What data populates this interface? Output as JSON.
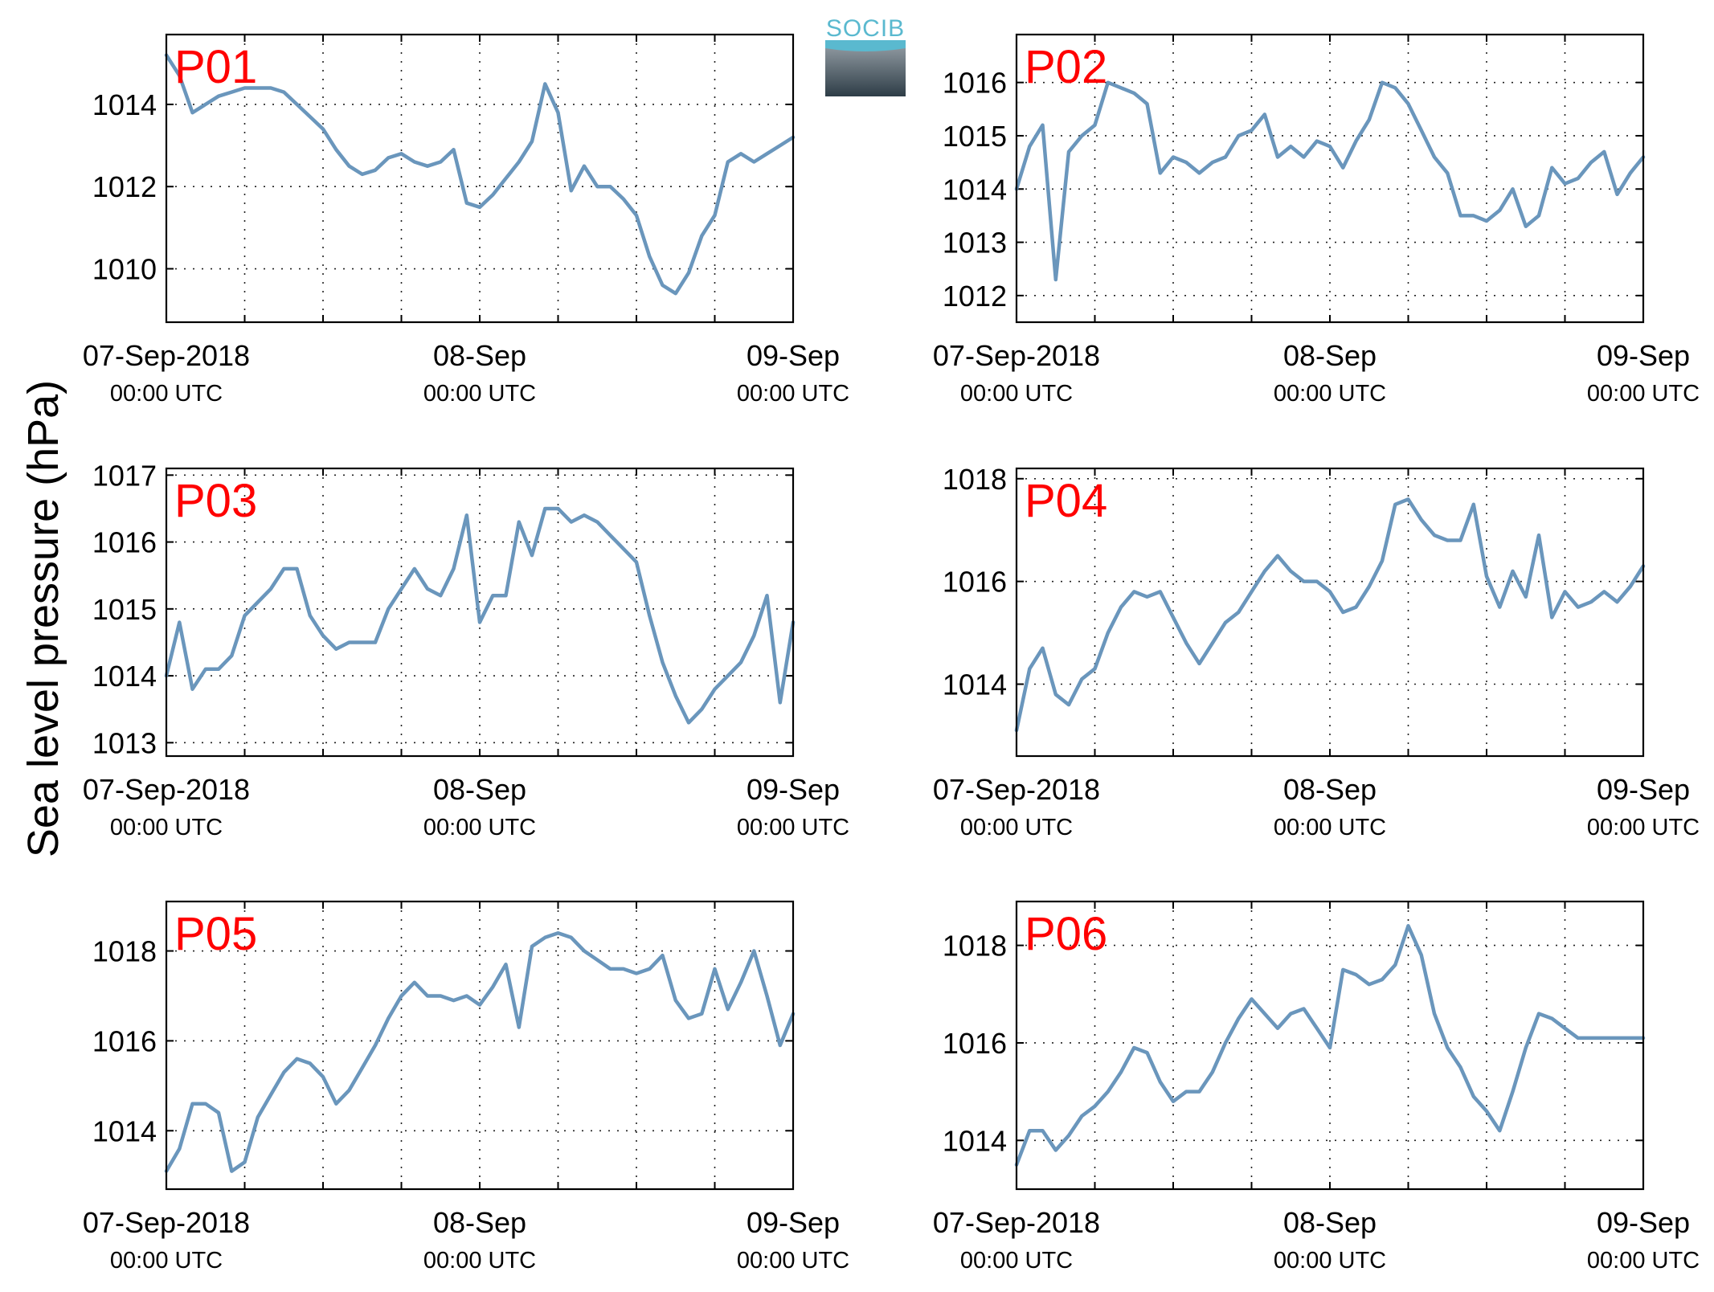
{
  "figure": {
    "ylabel": "Sea level pressure (hPa)",
    "logo_text": "SOCIB"
  },
  "colors": {
    "series": "#6a96bc",
    "label": "#ff0000",
    "logo_top": "#5ab9cf",
    "logo_bottom": "#2f3e48"
  },
  "chart_data": [
    {
      "type": "line",
      "title": "P01",
      "x_ticks": [
        {
          "main": "07-Sep-2018",
          "sub": "00:00 UTC"
        },
        {
          "main": "08-Sep",
          "sub": "00:00 UTC"
        },
        {
          "main": "09-Sep",
          "sub": "00:00 UTC"
        }
      ],
      "x_range_hours": [
        0,
        48
      ],
      "ylim": [
        1008.7,
        1015.7
      ],
      "yticks": [
        1010,
        1012,
        1014
      ],
      "grid": true,
      "x": [
        0,
        1,
        2,
        3,
        4,
        5,
        6,
        7,
        8,
        9,
        10,
        11,
        12,
        13,
        14,
        15,
        16,
        17,
        18,
        19,
        20,
        21,
        22,
        23,
        24,
        25,
        26,
        27,
        28,
        29,
        30,
        31,
        32,
        33,
        34,
        35,
        36,
        37,
        38,
        39,
        40,
        41,
        42,
        43,
        44,
        45,
        46,
        47,
        48
      ],
      "values": [
        1015.2,
        1014.7,
        1013.8,
        1014,
        1014.2,
        1014.3,
        1014.4,
        1014.4,
        1014.4,
        1014.3,
        1014,
        1013.7,
        1013.4,
        1012.9,
        1012.5,
        1012.3,
        1012.4,
        1012.7,
        1012.8,
        1012.6,
        1012.5,
        1012.6,
        1012.9,
        1011.6,
        1011.5,
        1011.8,
        1012.2,
        1012.6,
        1013.1,
        1014.5,
        1013.8,
        1011.9,
        1012.5,
        1012,
        1012,
        1011.7,
        1011.3,
        1010.3,
        1009.6,
        1009.4,
        1009.9,
        1010.8,
        1011.3,
        1012.6,
        1012.8,
        1012.6,
        1012.8,
        1013,
        1013.2
      ]
    },
    {
      "type": "line",
      "title": "P02",
      "x_ticks": [
        {
          "main": "07-Sep-2018",
          "sub": "00:00 UTC"
        },
        {
          "main": "08-Sep",
          "sub": "00:00 UTC"
        },
        {
          "main": "09-Sep",
          "sub": "00:00 UTC"
        }
      ],
      "x_range_hours": [
        0,
        48
      ],
      "ylim": [
        1011.5,
        1016.9
      ],
      "yticks": [
        1012,
        1013,
        1014,
        1015,
        1016
      ],
      "grid": true,
      "x": [
        0,
        1,
        2,
        3,
        4,
        5,
        6,
        7,
        8,
        9,
        10,
        11,
        12,
        13,
        14,
        15,
        16,
        17,
        18,
        19,
        20,
        21,
        22,
        23,
        24,
        25,
        26,
        27,
        28,
        29,
        30,
        31,
        32,
        33,
        34,
        35,
        36,
        37,
        38,
        39,
        40,
        41,
        42,
        43,
        44,
        45,
        46,
        47,
        48
      ],
      "values": [
        1014,
        1014.8,
        1015.2,
        1012.3,
        1014.7,
        1015,
        1015.2,
        1016,
        1015.9,
        1015.8,
        1015.6,
        1014.3,
        1014.6,
        1014.5,
        1014.3,
        1014.5,
        1014.6,
        1015,
        1015.1,
        1015.4,
        1014.6,
        1014.8,
        1014.6,
        1014.9,
        1014.8,
        1014.4,
        1014.9,
        1015.3,
        1016,
        1015.9,
        1015.6,
        1015.1,
        1014.6,
        1014.3,
        1013.5,
        1013.5,
        1013.4,
        1013.6,
        1014,
        1013.3,
        1013.5,
        1014.4,
        1014.1,
        1014.2,
        1014.5,
        1014.7,
        1013.9,
        1014.3,
        1014.6
      ]
    },
    {
      "type": "line",
      "title": "P03",
      "x_ticks": [
        {
          "main": "07-Sep-2018",
          "sub": "00:00 UTC"
        },
        {
          "main": "08-Sep",
          "sub": "00:00 UTC"
        },
        {
          "main": "09-Sep",
          "sub": "00:00 UTC"
        }
      ],
      "x_range_hours": [
        0,
        48
      ],
      "ylim": [
        1012.8,
        1017.1
      ],
      "yticks": [
        1013,
        1014,
        1015,
        1016,
        1017
      ],
      "grid": true,
      "x": [
        0,
        1,
        2,
        3,
        4,
        5,
        6,
        7,
        8,
        9,
        10,
        11,
        12,
        13,
        14,
        15,
        16,
        17,
        18,
        19,
        20,
        21,
        22,
        23,
        24,
        25,
        26,
        27,
        28,
        29,
        30,
        31,
        32,
        33,
        34,
        35,
        36,
        37,
        38,
        39,
        40,
        41,
        42,
        43,
        44,
        45,
        46,
        47,
        48
      ],
      "values": [
        1014,
        1014.8,
        1013.8,
        1014.1,
        1014.1,
        1014.3,
        1014.9,
        1015.1,
        1015.3,
        1015.6,
        1015.6,
        1014.9,
        1014.6,
        1014.4,
        1014.5,
        1014.5,
        1014.5,
        1015,
        1015.3,
        1015.6,
        1015.3,
        1015.2,
        1015.6,
        1016.4,
        1014.8,
        1015.2,
        1015.2,
        1016.3,
        1015.8,
        1016.5,
        1016.5,
        1016.3,
        1016.4,
        1016.3,
        1016.1,
        1015.9,
        1015.7,
        1014.9,
        1014.2,
        1013.7,
        1013.3,
        1013.5,
        1013.8,
        1014,
        1014.2,
        1014.6,
        1015.2,
        1013.6,
        1014.8
      ]
    },
    {
      "type": "line",
      "title": "P04",
      "x_ticks": [
        {
          "main": "07-Sep-2018",
          "sub": "00:00 UTC"
        },
        {
          "main": "08-Sep",
          "sub": "00:00 UTC"
        },
        {
          "main": "09-Sep",
          "sub": "00:00 UTC"
        }
      ],
      "x_range_hours": [
        0,
        48
      ],
      "ylim": [
        1012.6,
        1018.2
      ],
      "yticks": [
        1014,
        1016,
        1018
      ],
      "grid": true,
      "x": [
        0,
        1,
        2,
        3,
        4,
        5,
        6,
        7,
        8,
        9,
        10,
        11,
        12,
        13,
        14,
        15,
        16,
        17,
        18,
        19,
        20,
        21,
        22,
        23,
        24,
        25,
        26,
        27,
        28,
        29,
        30,
        31,
        32,
        33,
        34,
        35,
        36,
        37,
        38,
        39,
        40,
        41,
        42,
        43,
        44,
        45,
        46,
        47,
        48
      ],
      "values": [
        1013.1,
        1014.3,
        1014.7,
        1013.8,
        1013.6,
        1014.1,
        1014.3,
        1015,
        1015.5,
        1015.8,
        1015.7,
        1015.8,
        1015.3,
        1014.8,
        1014.4,
        1014.8,
        1015.2,
        1015.4,
        1015.8,
        1016.2,
        1016.5,
        1016.2,
        1016,
        1016,
        1015.8,
        1015.4,
        1015.5,
        1015.9,
        1016.4,
        1017.5,
        1017.6,
        1017.2,
        1016.9,
        1016.8,
        1016.8,
        1017.5,
        1016.1,
        1015.5,
        1016.2,
        1015.7,
        1016.9,
        1015.3,
        1015.8,
        1015.5,
        1015.6,
        1015.8,
        1015.6,
        1015.9,
        1016.3
      ]
    },
    {
      "type": "line",
      "title": "P05",
      "x_ticks": [
        {
          "main": "07-Sep-2018",
          "sub": "00:00 UTC"
        },
        {
          "main": "08-Sep",
          "sub": "00:00 UTC"
        },
        {
          "main": "09-Sep",
          "sub": "00:00 UTC"
        }
      ],
      "x_range_hours": [
        0,
        48
      ],
      "ylim": [
        1012.7,
        1019.1
      ],
      "yticks": [
        1014,
        1016,
        1018
      ],
      "grid": true,
      "x": [
        0,
        1,
        2,
        3,
        4,
        5,
        6,
        7,
        8,
        9,
        10,
        11,
        12,
        13,
        14,
        15,
        16,
        17,
        18,
        19,
        20,
        21,
        22,
        23,
        24,
        25,
        26,
        27,
        28,
        29,
        30,
        31,
        32,
        33,
        34,
        35,
        36,
        37,
        38,
        39,
        40,
        41,
        42,
        43,
        44,
        45,
        46,
        47,
        48
      ],
      "values": [
        1013.1,
        1013.6,
        1014.6,
        1014.6,
        1014.4,
        1013.1,
        1013.3,
        1014.3,
        1014.8,
        1015.3,
        1015.6,
        1015.5,
        1015.2,
        1014.6,
        1014.9,
        1015.4,
        1015.9,
        1016.5,
        1017,
        1017.3,
        1017,
        1017,
        1016.9,
        1017,
        1016.8,
        1017.2,
        1017.7,
        1016.3,
        1018.1,
        1018.3,
        1018.4,
        1018.3,
        1018,
        1017.8,
        1017.6,
        1017.6,
        1017.5,
        1017.6,
        1017.9,
        1016.9,
        1016.5,
        1016.6,
        1017.6,
        1016.7,
        1017.3,
        1018,
        1017,
        1015.9,
        1016.6
      ]
    },
    {
      "type": "line",
      "title": "P06",
      "x_ticks": [
        {
          "main": "07-Sep-2018",
          "sub": "00:00 UTC"
        },
        {
          "main": "08-Sep",
          "sub": "00:00 UTC"
        },
        {
          "main": "09-Sep",
          "sub": "00:00 UTC"
        }
      ],
      "x_range_hours": [
        0,
        48
      ],
      "ylim": [
        1013,
        1018.9
      ],
      "yticks": [
        1014,
        1016,
        1018
      ],
      "grid": true,
      "x": [
        0,
        1,
        2,
        3,
        4,
        5,
        6,
        7,
        8,
        9,
        10,
        11,
        12,
        13,
        14,
        15,
        16,
        17,
        18,
        19,
        20,
        21,
        22,
        23,
        24,
        25,
        26,
        27,
        28,
        29,
        30,
        31,
        32,
        33,
        34,
        35,
        36,
        37,
        38,
        39,
        40,
        41,
        42,
        43,
        44,
        45,
        46,
        47,
        48
      ],
      "values": [
        1013.5,
        1014.2,
        1014.2,
        1013.8,
        1014.1,
        1014.5,
        1014.7,
        1015,
        1015.4,
        1015.9,
        1015.8,
        1015.2,
        1014.8,
        1015,
        1015,
        1015.4,
        1016,
        1016.5,
        1016.9,
        1016.6,
        1016.3,
        1016.6,
        1016.7,
        1016.3,
        1015.9,
        1017.5,
        1017.4,
        1017.2,
        1017.3,
        1017.6,
        1018.4,
        1017.8,
        1016.6,
        1015.9,
        1015.5,
        1014.9,
        1014.6,
        1014.2,
        1015,
        1015.9,
        1016.6,
        1016.5,
        1016.3,
        1016.1,
        1016.1,
        1016.1,
        1016.1,
        1016.1,
        1016.1
      ]
    }
  ]
}
